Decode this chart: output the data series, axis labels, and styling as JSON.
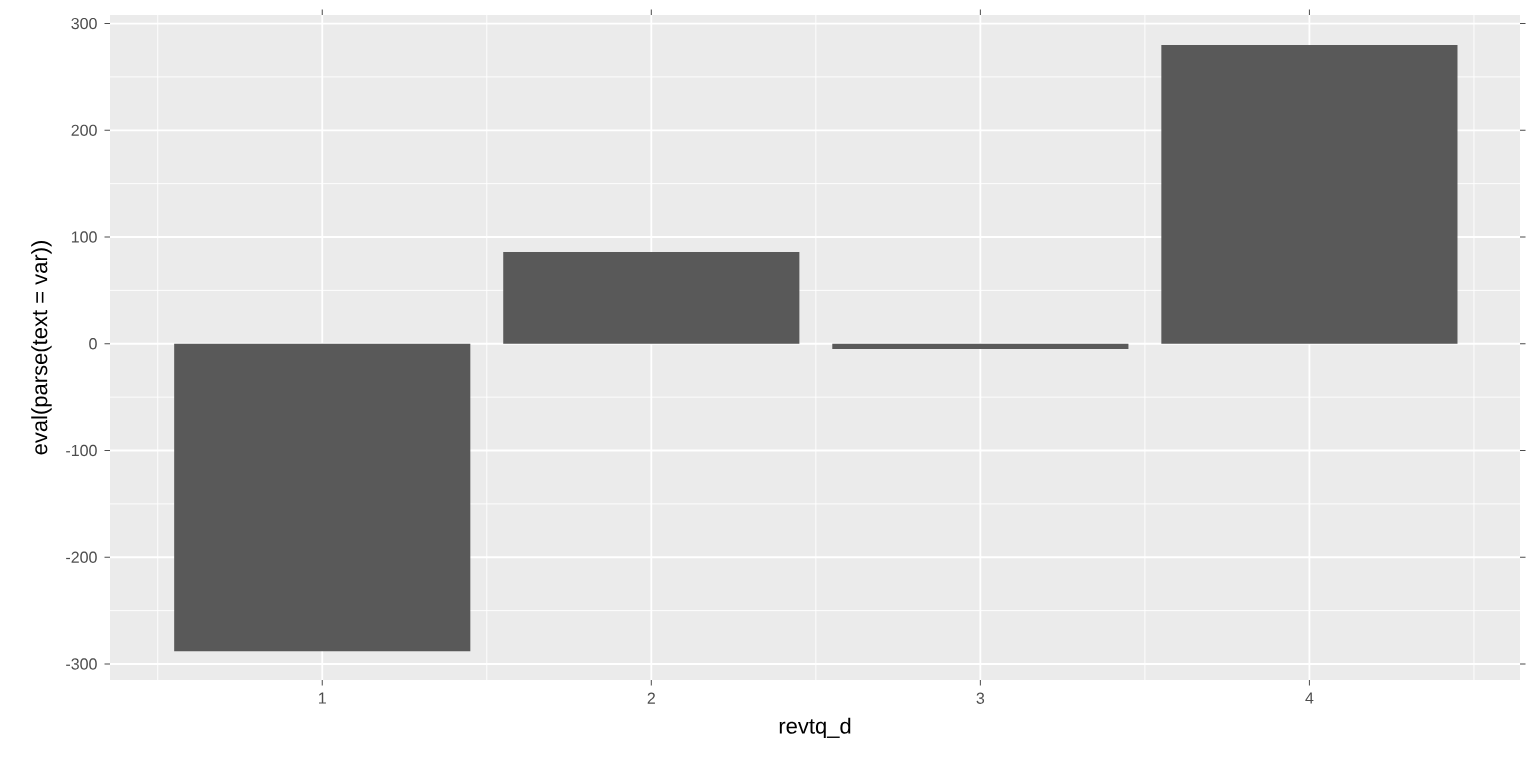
{
  "chart_data": {
    "type": "bar",
    "xlabel": "revtq_d",
    "ylabel": "eval(parse(text = var))",
    "categories": [
      "1",
      "2",
      "3",
      "4"
    ],
    "values": [
      -288,
      86,
      -5,
      280
    ],
    "color": "#595959",
    "ylim": [
      -315,
      308
    ],
    "yticks": [
      -300,
      -200,
      -100,
      0,
      100,
      200,
      300
    ],
    "grid": true
  }
}
